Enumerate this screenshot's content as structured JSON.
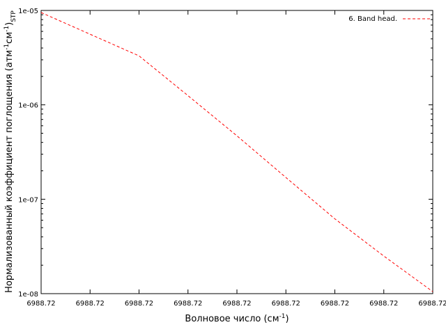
{
  "chart_data": {
    "type": "line",
    "x_tick_labels": [
      "6988.72",
      "6988.72",
      "6988.72",
      "6988.72",
      "6988.72",
      "6988.72",
      "6988.72",
      "6988.72",
      "6988.72"
    ],
    "y_tick_labels": [
      "1e-05",
      "1e-06",
      "1e-07",
      "1e-08"
    ],
    "y_tick_values": [
      1e-05,
      1e-06,
      1e-07,
      1e-08
    ],
    "yscale": "log",
    "ylim": [
      1e-08,
      1e-05
    ],
    "xlabel": {
      "main": "Волновое число (см",
      "sup": "-1",
      "end": ")"
    },
    "ylabel": {
      "part1": "Нормализованный коэффициент поглощения (атм",
      "sup1": "-1",
      "part2": "см",
      "sup2": "-1",
      "part3": ")",
      "sub": "STP"
    },
    "series": [
      {
        "name": "6. Band head.",
        "color": "#ff0000",
        "line_style": "dashed",
        "x": [
          0,
          0.125,
          0.25,
          0.375,
          0.5,
          0.625,
          0.75,
          0.875,
          1.0
        ],
        "y": [
          9.5e-06,
          5.6e-06,
          3.3e-06,
          1.25e-06,
          4.7e-07,
          1.7e-07,
          6.2e-08,
          2.5e-08,
          1.05e-08
        ]
      }
    ],
    "grid": false,
    "legend_position": "top-right"
  }
}
